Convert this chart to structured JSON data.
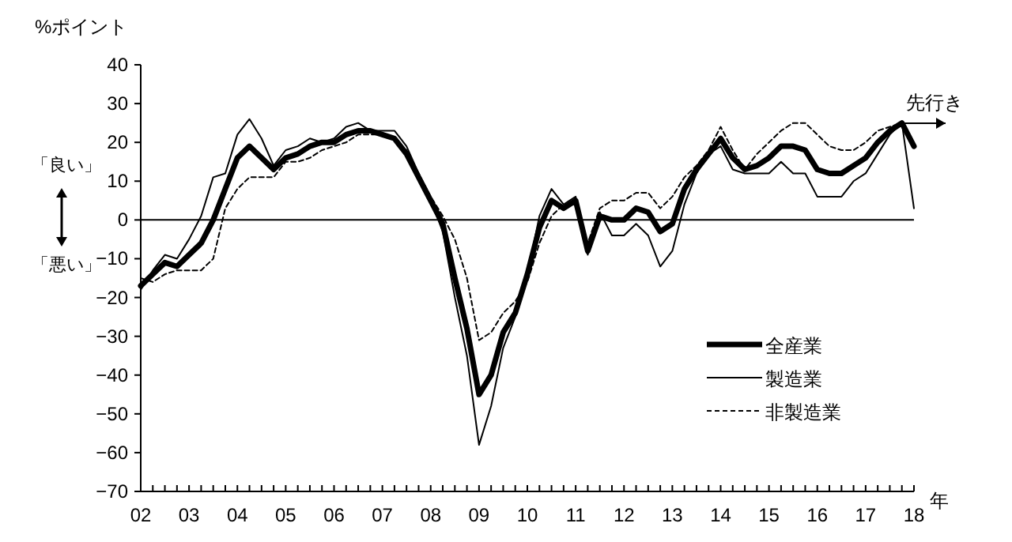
{
  "chart_data": {
    "type": "line",
    "ylabel": "%ポイント",
    "xlabel": "年",
    "x": [
      2002,
      2002.25,
      2002.5,
      2002.75,
      2003,
      2003.25,
      2003.5,
      2003.75,
      2004,
      2004.25,
      2004.5,
      2004.75,
      2005,
      2005.25,
      2005.5,
      2005.75,
      2006,
      2006.25,
      2006.5,
      2006.75,
      2007,
      2007.25,
      2007.5,
      2007.75,
      2008,
      2008.25,
      2008.5,
      2008.75,
      2009,
      2009.25,
      2009.5,
      2009.75,
      2010,
      2010.25,
      2010.5,
      2010.75,
      2011,
      2011.25,
      2011.5,
      2011.75,
      2012,
      2012.25,
      2012.5,
      2012.75,
      2013,
      2013.25,
      2013.5,
      2013.75,
      2014,
      2014.25,
      2014.5,
      2014.75,
      2015,
      2015.25,
      2015.5,
      2015.75,
      2016,
      2016.25,
      2016.5,
      2016.75,
      2017,
      2017.25,
      2017.5,
      2017.75,
      2018
    ],
    "series": [
      {
        "name": "全産業",
        "color": "#000000",
        "line_style": "solid",
        "values": [
          -17,
          -14,
          -11,
          -12,
          -9,
          -6,
          0,
          8,
          16,
          19,
          16,
          13,
          16,
          17,
          19,
          20,
          20,
          22,
          23,
          23,
          22,
          21,
          17,
          11,
          5,
          -1,
          -15,
          -28,
          -45,
          -40,
          -29,
          -24,
          -14,
          -2,
          5,
          3,
          5,
          -8,
          1,
          0,
          0,
          3,
          2,
          -3,
          -1,
          8,
          13,
          17,
          21,
          16,
          13,
          14,
          16,
          19,
          19,
          18,
          13,
          12,
          12,
          14,
          16,
          20,
          23,
          25,
          19
        ]
      },
      {
        "name": "製造業",
        "color": "#000000",
        "line_style": "solid",
        "values": [
          -18,
          -13,
          -9,
          -10,
          -5,
          1,
          11,
          12,
          22,
          26,
          21,
          14,
          18,
          19,
          21,
          20,
          21,
          24,
          25,
          23,
          23,
          23,
          19,
          12,
          5,
          -3,
          -20,
          -35,
          -58,
          -48,
          -33,
          -25,
          -14,
          1,
          8,
          4,
          6,
          -9,
          2,
          -4,
          -4,
          -1,
          -4,
          -12,
          -8,
          4,
          12,
          17,
          19,
          13,
          12,
          12,
          12,
          15,
          12,
          12,
          6,
          6,
          6,
          10,
          12,
          17,
          22,
          25,
          3
        ]
      },
      {
        "name": "非製造業",
        "color": "#000000",
        "line_style": "dashed",
        "values": [
          -15,
          -16,
          -14,
          -13,
          -13,
          -13,
          -10,
          3,
          8,
          11,
          11,
          11,
          15,
          15,
          16,
          18,
          19,
          20,
          22,
          22,
          22,
          21,
          18,
          12,
          6,
          1,
          -5,
          -15,
          -31,
          -29,
          -24,
          -21,
          -16,
          -6,
          1,
          4,
          4,
          -6,
          3,
          5,
          5,
          7,
          7,
          3,
          6,
          11,
          14,
          18,
          24,
          18,
          13,
          17,
          20,
          23,
          25,
          25,
          22,
          19,
          18,
          18,
          20,
          23,
          24,
          25,
          20
        ]
      }
    ],
    "xlim": [
      2002,
      2018
    ],
    "xticks": [
      {
        "value": 2002,
        "label": "02"
      },
      {
        "value": 2002.25,
        "label": null
      },
      {
        "value": 2002.5,
        "label": null
      },
      {
        "value": 2002.75,
        "label": null
      },
      {
        "value": 2003,
        "label": "03"
      },
      {
        "value": 2003.25,
        "label": null
      },
      {
        "value": 2003.5,
        "label": null
      },
      {
        "value": 2003.75,
        "label": null
      },
      {
        "value": 2004,
        "label": "04"
      },
      {
        "value": 2004.25,
        "label": null
      },
      {
        "value": 2004.5,
        "label": null
      },
      {
        "value": 2004.75,
        "label": null
      },
      {
        "value": 2005,
        "label": "05"
      },
      {
        "value": 2005.25,
        "label": null
      },
      {
        "value": 2005.5,
        "label": null
      },
      {
        "value": 2005.75,
        "label": null
      },
      {
        "value": 2006,
        "label": "06"
      },
      {
        "value": 2006.25,
        "label": null
      },
      {
        "value": 2006.5,
        "label": null
      },
      {
        "value": 2006.75,
        "label": null
      },
      {
        "value": 2007,
        "label": "07"
      },
      {
        "value": 2007.25,
        "label": null
      },
      {
        "value": 2007.5,
        "label": null
      },
      {
        "value": 2007.75,
        "label": null
      },
      {
        "value": 2008,
        "label": "08"
      },
      {
        "value": 2008.25,
        "label": null
      },
      {
        "value": 2008.5,
        "label": null
      },
      {
        "value": 2008.75,
        "label": null
      },
      {
        "value": 2009,
        "label": "09"
      },
      {
        "value": 2009.25,
        "label": null
      },
      {
        "value": 2009.5,
        "label": null
      },
      {
        "value": 2009.75,
        "label": null
      },
      {
        "value": 2010,
        "label": "10"
      },
      {
        "value": 2010.25,
        "label": null
      },
      {
        "value": 2010.5,
        "label": null
      },
      {
        "value": 2010.75,
        "label": null
      },
      {
        "value": 2011,
        "label": "11"
      },
      {
        "value": 2011.25,
        "label": null
      },
      {
        "value": 2011.5,
        "label": null
      },
      {
        "value": 2011.75,
        "label": null
      },
      {
        "value": 2012,
        "label": "12"
      },
      {
        "value": 2012.25,
        "label": null
      },
      {
        "value": 2012.5,
        "label": null
      },
      {
        "value": 2012.75,
        "label": null
      },
      {
        "value": 2013,
        "label": "13"
      },
      {
        "value": 2013.25,
        "label": null
      },
      {
        "value": 2013.5,
        "label": null
      },
      {
        "value": 2013.75,
        "label": null
      },
      {
        "value": 2014,
        "label": "14"
      },
      {
        "value": 2014.25,
        "label": null
      },
      {
        "value": 2014.5,
        "label": null
      },
      {
        "value": 2014.75,
        "label": null
      },
      {
        "value": 2015,
        "label": "15"
      },
      {
        "value": 2015.25,
        "label": null
      },
      {
        "value": 2015.5,
        "label": null
      },
      {
        "value": 2015.75,
        "label": null
      },
      {
        "value": 2016,
        "label": "16"
      },
      {
        "value": 2016.25,
        "label": null
      },
      {
        "value": 2016.5,
        "label": null
      },
      {
        "value": 2016.75,
        "label": null
      },
      {
        "value": 2017,
        "label": "17"
      },
      {
        "value": 2017.25,
        "label": null
      },
      {
        "value": 2017.5,
        "label": null
      },
      {
        "value": 2017.75,
        "label": null
      },
      {
        "value": 2018,
        "label": "18"
      }
    ],
    "ylim": [
      -70,
      40
    ],
    "yticks": [
      -70,
      -60,
      -50,
      -40,
      -30,
      -20,
      -10,
      0,
      10,
      20,
      30,
      40
    ],
    "ref_lines": [
      {
        "axis": "y",
        "value": 0,
        "color": "#000000"
      }
    ],
    "annotations": [
      "「良い」",
      "「悪い」",
      "先行き"
    ],
    "legend": "bottom right",
    "grid": false
  }
}
